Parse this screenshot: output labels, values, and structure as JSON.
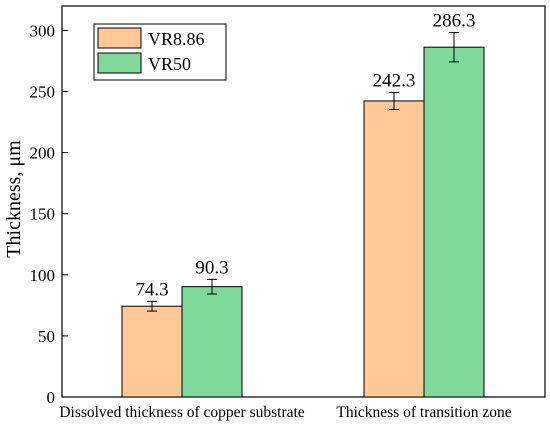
{
  "chart_data": {
    "type": "bar",
    "title": "",
    "xlabel": "",
    "ylabel": "Thickness, μm",
    "ylim": [
      0,
      320
    ],
    "yticks": [
      0,
      50,
      100,
      150,
      200,
      250,
      300
    ],
    "categories": [
      "Dissolved thickness of copper substrate",
      "Thickness of transition zone"
    ],
    "series": [
      {
        "name": "VR8.86",
        "color": "#ffc896",
        "values": [
          74.3,
          242.3
        ],
        "errors": [
          4,
          7
        ],
        "labels": [
          "74.3",
          "242.3"
        ]
      },
      {
        "name": "VR50",
        "color": "#7fd99a",
        "values": [
          90.3,
          286.3
        ],
        "errors": [
          6,
          12
        ],
        "labels": [
          "90.3",
          "286.3"
        ]
      }
    ],
    "legend": "top-left",
    "grid": false
  }
}
